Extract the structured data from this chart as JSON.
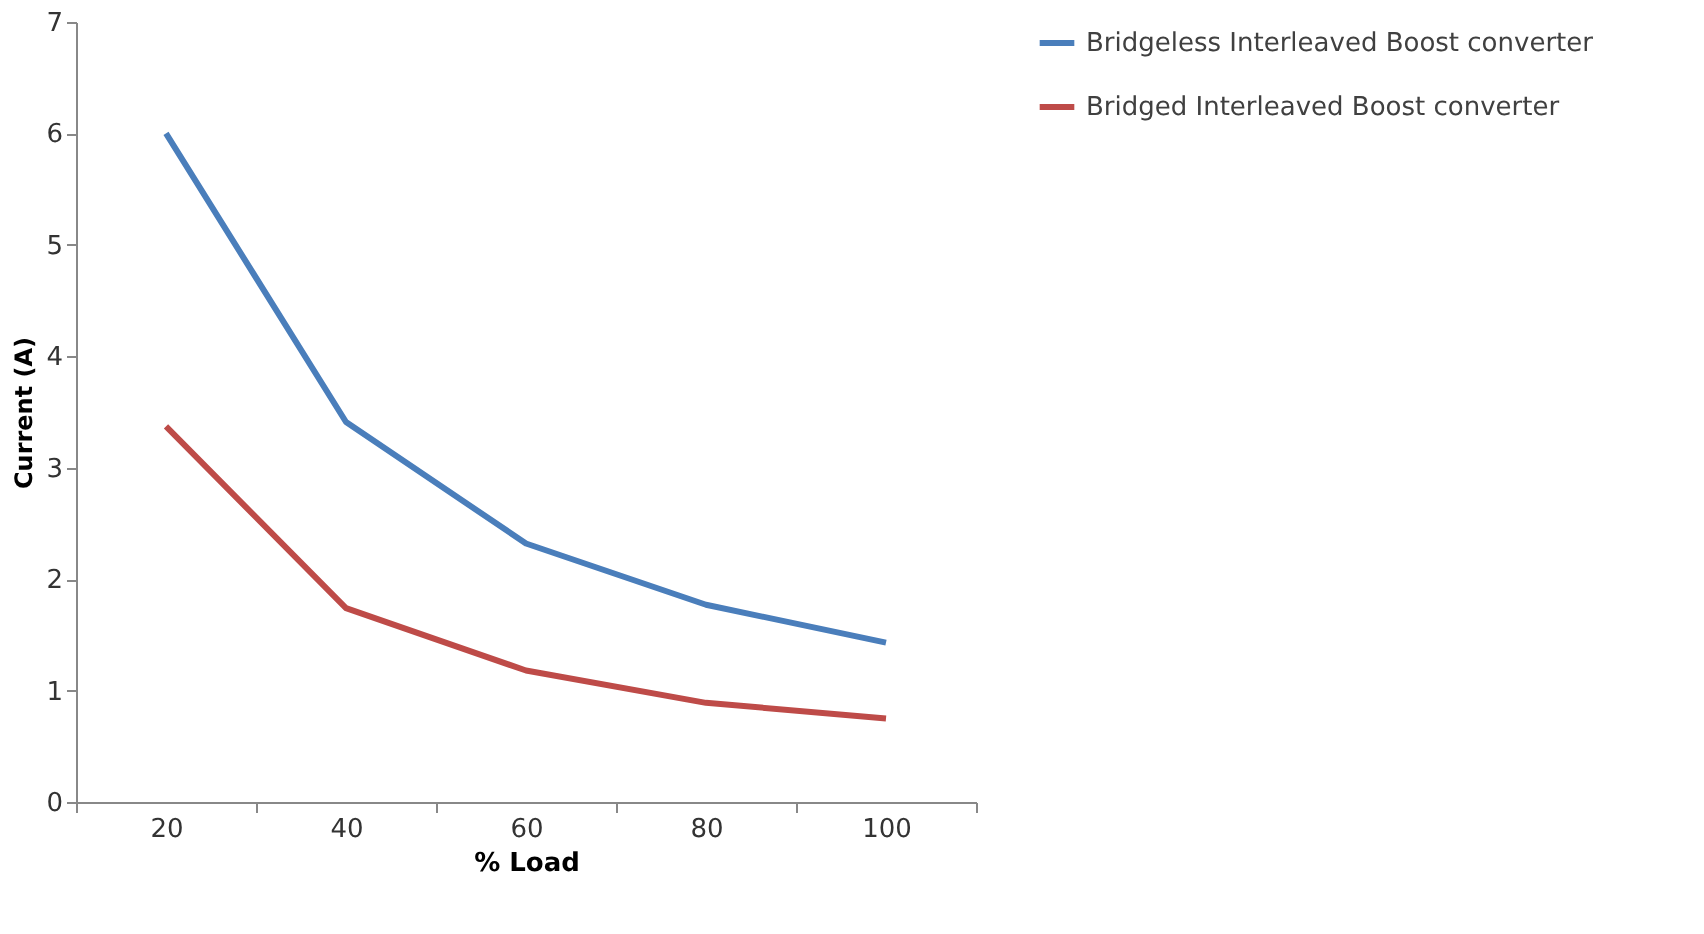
{
  "chart_data": {
    "type": "line",
    "xlabel": "% Load",
    "ylabel": "Current (A)",
    "categories": [
      "20",
      "40",
      "60",
      "80",
      "100"
    ],
    "series": [
      {
        "name": "Bridgeless Interleaved Boost converter",
        "color": "#4a7ebb",
        "values": [
          6.0,
          3.41,
          2.32,
          1.77,
          1.43
        ]
      },
      {
        "name": "Bridged Interleaved Boost converter",
        "color": "#be4b48",
        "values": [
          3.37,
          1.74,
          1.18,
          0.89,
          0.75
        ]
      }
    ],
    "ylim": [
      0,
      7
    ],
    "yticks": [
      0,
      1,
      2,
      3,
      4,
      5,
      6,
      7
    ],
    "grid": false,
    "legend": "right",
    "marker": "none",
    "line_style": "solid"
  }
}
